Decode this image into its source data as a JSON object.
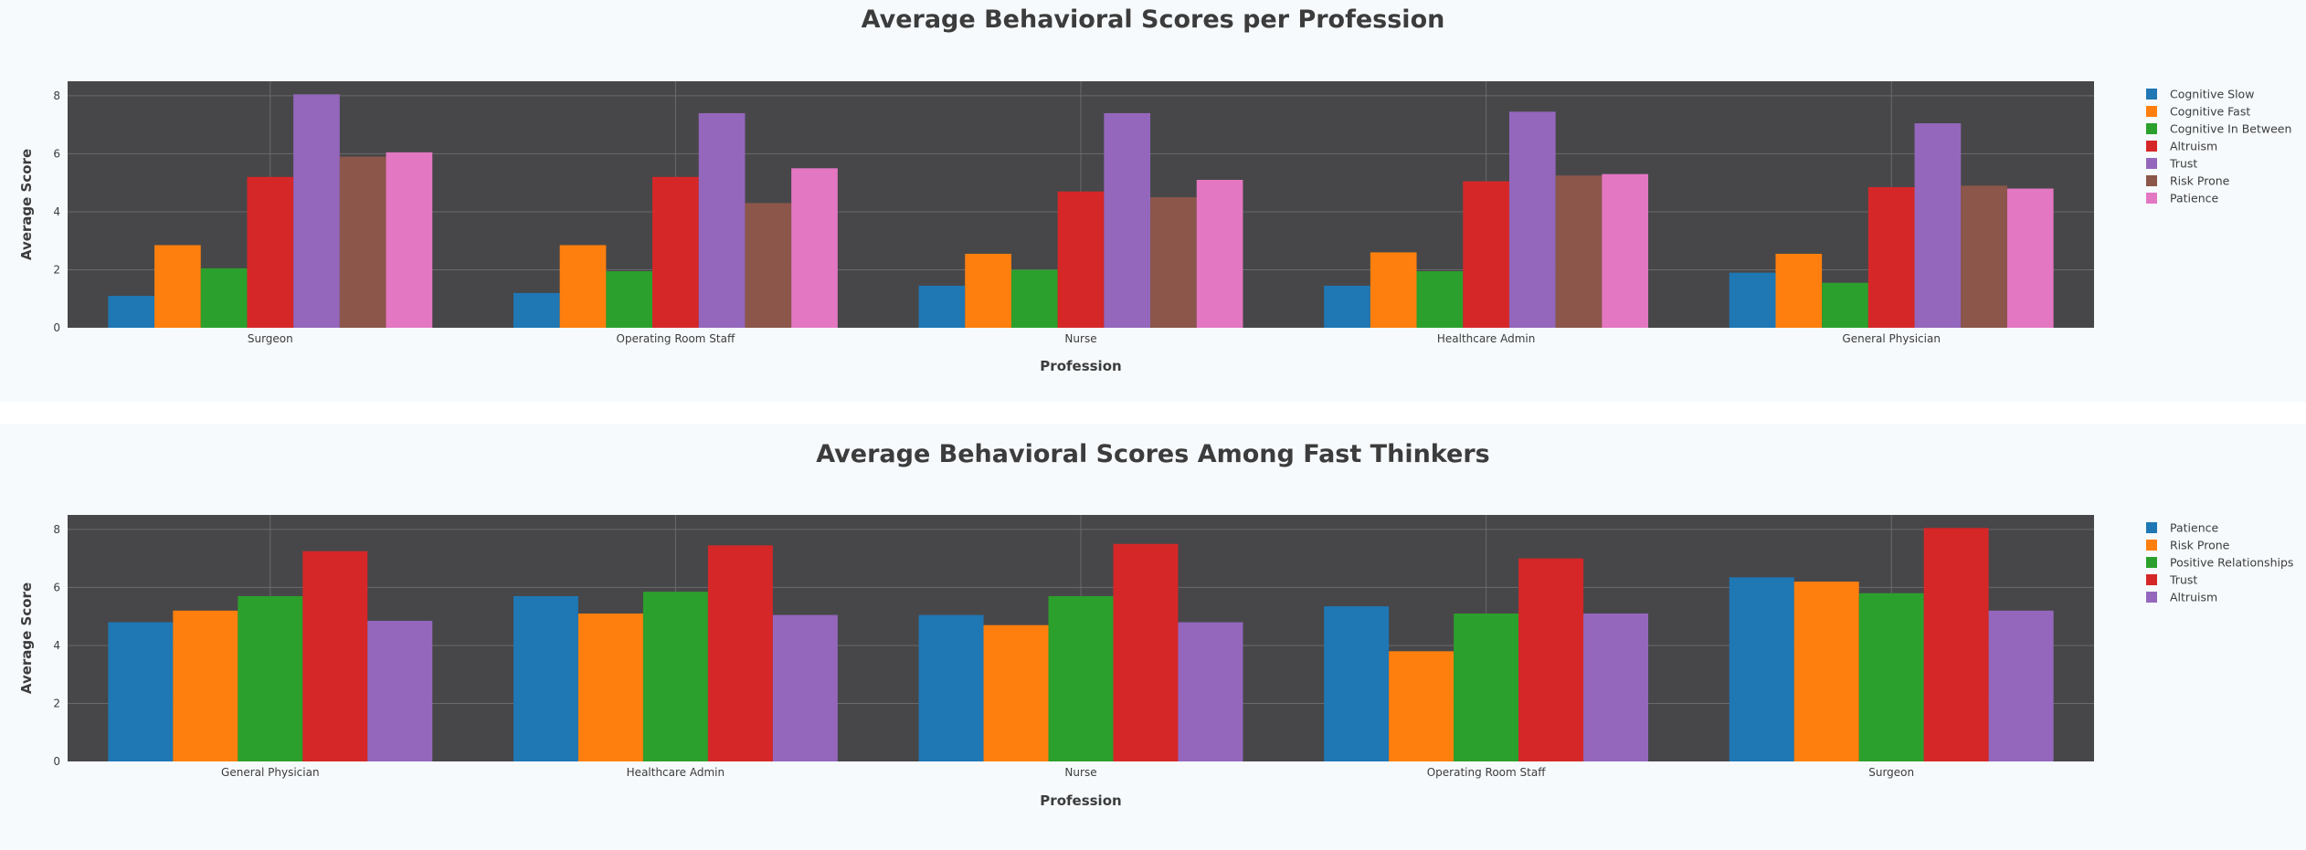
{
  "colors": {
    "page_background": "#f6fafd",
    "plot_background": "#474749",
    "grid": "#6a6a6c",
    "text": "#3c3c3c"
  },
  "chart_data": [
    {
      "type": "bar",
      "title": "Average Behavioral Scores per Profession",
      "xlabel": "Profession",
      "ylabel": "Average Score",
      "ylim": [
        0,
        8.5
      ],
      "yticks": [
        0,
        2,
        4,
        6,
        8
      ],
      "grid": true,
      "legend_position": "right",
      "categories": [
        "Surgeon",
        "Operating Room Staff",
        "Nurse",
        "Healthcare Admin",
        "General Physician"
      ],
      "series": [
        {
          "name": "Cognitive Slow",
          "color": "#1f77b4",
          "values": [
            1.1,
            1.2,
            1.45,
            1.45,
            1.9
          ]
        },
        {
          "name": "Cognitive Fast",
          "color": "#ff7f0e",
          "values": [
            2.85,
            2.85,
            2.55,
            2.6,
            2.55
          ]
        },
        {
          "name": "Cognitive In Between",
          "color": "#2ca02c",
          "values": [
            2.05,
            1.95,
            2.0,
            1.95,
            1.55
          ]
        },
        {
          "name": "Altruism",
          "color": "#d62728",
          "values": [
            5.2,
            5.2,
            4.7,
            5.05,
            4.85
          ]
        },
        {
          "name": "Trust",
          "color": "#9467bd",
          "values": [
            8.05,
            7.4,
            7.4,
            7.45,
            7.05
          ]
        },
        {
          "name": "Risk Prone",
          "color": "#8c564b",
          "values": [
            5.9,
            4.3,
            4.5,
            5.25,
            4.9
          ]
        },
        {
          "name": "Patience",
          "color": "#e377c2",
          "values": [
            6.05,
            5.5,
            5.1,
            5.3,
            4.8
          ]
        }
      ]
    },
    {
      "type": "bar",
      "title": "Average Behavioral Scores Among Fast Thinkers",
      "xlabel": "Profession",
      "ylabel": "Average Score",
      "ylim": [
        0,
        8.5
      ],
      "yticks": [
        0,
        2,
        4,
        6,
        8
      ],
      "grid": true,
      "legend_position": "right",
      "categories": [
        "General Physician",
        "Healthcare Admin",
        "Nurse",
        "Operating Room Staff",
        "Surgeon"
      ],
      "series": [
        {
          "name": "Patience",
          "color": "#1f77b4",
          "values": [
            4.8,
            5.7,
            5.05,
            5.35,
            6.35
          ]
        },
        {
          "name": "Risk Prone",
          "color": "#ff7f0e",
          "values": [
            5.2,
            5.1,
            4.7,
            3.8,
            6.2
          ]
        },
        {
          "name": "Positive Relationships",
          "color": "#2ca02c",
          "values": [
            5.7,
            5.85,
            5.7,
            5.1,
            5.8
          ]
        },
        {
          "name": "Trust",
          "color": "#d62728",
          "values": [
            7.25,
            7.45,
            7.5,
            7.0,
            8.05
          ]
        },
        {
          "name": "Altruism",
          "color": "#9467bd",
          "values": [
            4.85,
            5.05,
            4.8,
            5.1,
            5.2
          ]
        }
      ]
    }
  ]
}
